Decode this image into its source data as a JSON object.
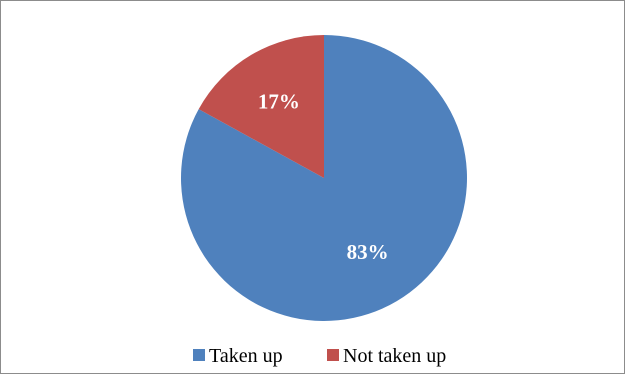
{
  "chart_data": {
    "type": "pie",
    "categories": [
      "Taken up",
      "Not taken up"
    ],
    "values": [
      83,
      17
    ],
    "slice_labels": [
      "83%",
      "17%"
    ],
    "colors": [
      "#4F81BD",
      "#C0504D"
    ],
    "start": "top",
    "direction": "clockwise",
    "legend": {
      "position": "bottom",
      "items": [
        "Taken up",
        "Not taken up"
      ]
    }
  }
}
